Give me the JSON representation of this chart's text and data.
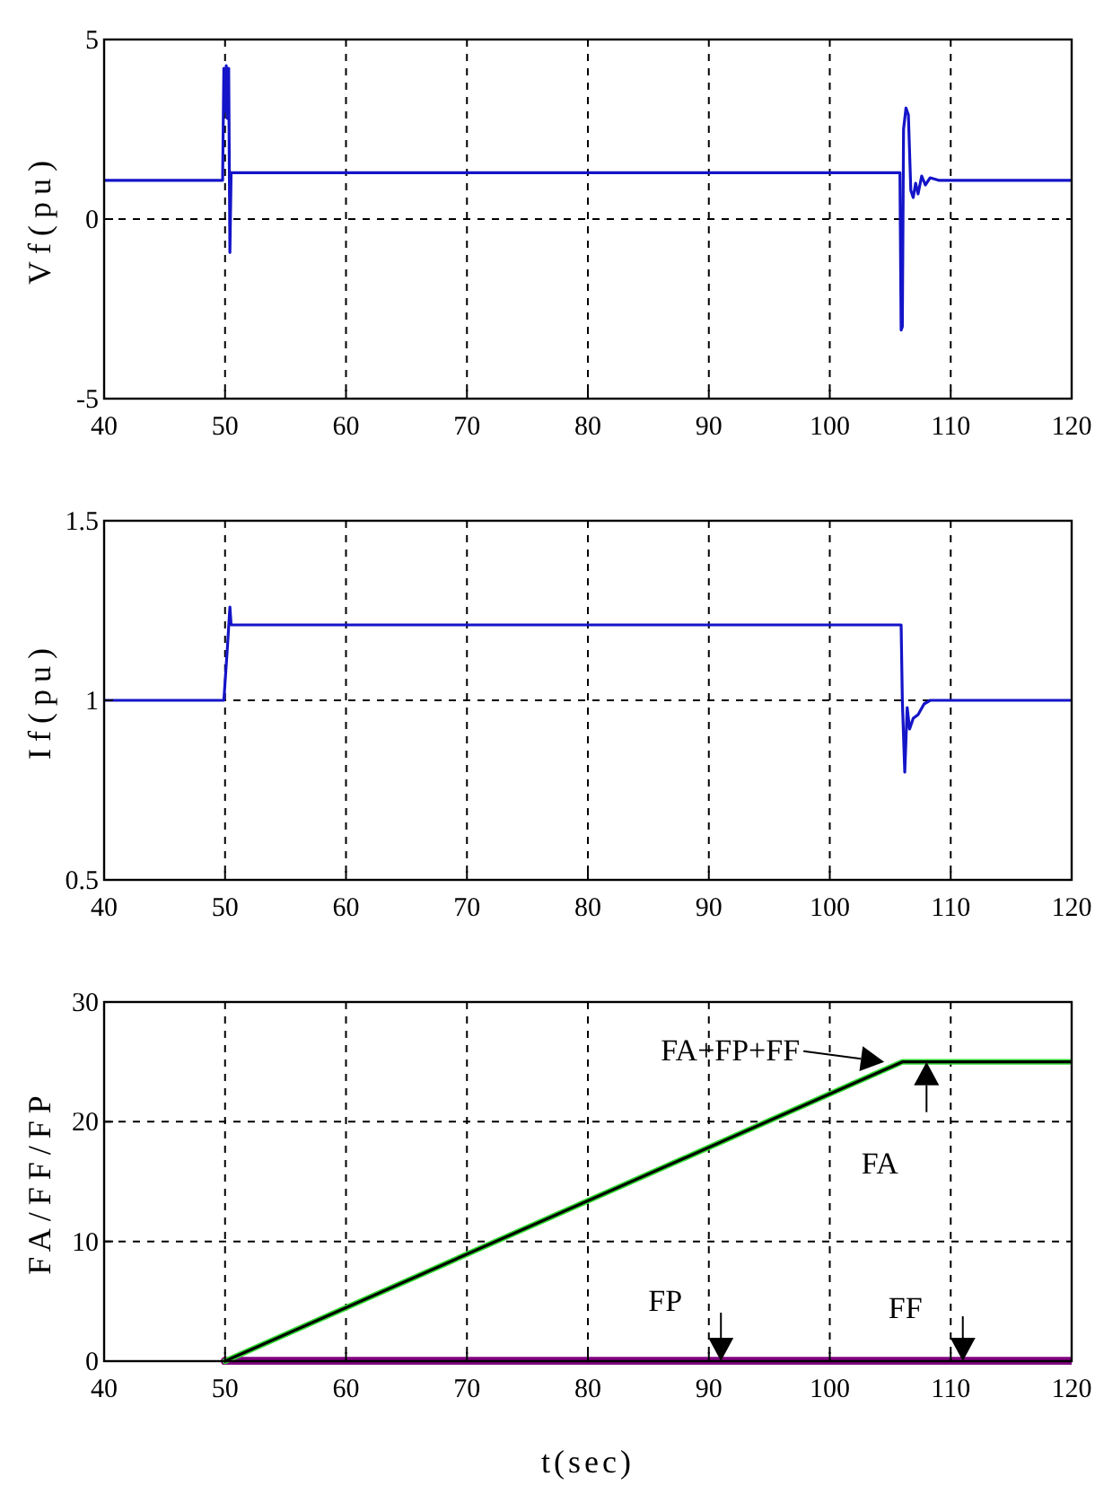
{
  "chart_data": [
    {
      "type": "line",
      "ylabel": "Vf(pu)",
      "xlim": [
        40,
        120
      ],
      "ylim": [
        -5,
        5
      ],
      "xticks": [
        40,
        50,
        60,
        70,
        80,
        90,
        100,
        110,
        120
      ],
      "yticks": [
        -5,
        0,
        5
      ],
      "grid": true,
      "series": [
        {
          "color": "#1414c8",
          "x": [
            40,
            49.8,
            49.9,
            50.0,
            50.1,
            50.2,
            50.3,
            50.4,
            50.5,
            105.8,
            105.9,
            106.0,
            106.1,
            106.3,
            106.5,
            106.7,
            106.9,
            107.1,
            107.3,
            107.6,
            107.9,
            108.3,
            109,
            120
          ],
          "values": [
            1.08,
            1.08,
            4.2,
            3.0,
            4.27,
            2.8,
            4.2,
            -0.93,
            1.29,
            1.29,
            -3.09,
            -3.0,
            2.5,
            3.09,
            2.9,
            0.8,
            0.6,
            1.0,
            0.7,
            1.2,
            0.95,
            1.15,
            1.08,
            1.08
          ]
        }
      ]
    },
    {
      "type": "line",
      "ylabel": "If(pu)",
      "xlim": [
        40,
        120
      ],
      "ylim": [
        0.5,
        1.5
      ],
      "xticks": [
        40,
        50,
        60,
        70,
        80,
        90,
        100,
        110,
        120
      ],
      "yticks": [
        0.5,
        1,
        1.5
      ],
      "grid": true,
      "series": [
        {
          "color": "#1414c8",
          "x": [
            40,
            49.9,
            50.0,
            50.2,
            50.4,
            50.5,
            50.7,
            105.9,
            106.0,
            106.2,
            106.4,
            106.6,
            106.9,
            107.3,
            107.8,
            108.3,
            120
          ],
          "values": [
            1,
            1,
            1.05,
            1.15,
            1.26,
            1.21,
            1.21,
            1.21,
            1.0,
            0.8,
            0.98,
            0.92,
            0.95,
            0.96,
            0.99,
            1.0,
            1.0
          ]
        }
      ]
    },
    {
      "type": "line",
      "xlabel": "t(sec)",
      "ylabel": "FA/FF/FP",
      "xlim": [
        40,
        120
      ],
      "ylim": [
        0,
        30
      ],
      "xticks": [
        40,
        50,
        60,
        70,
        80,
        90,
        100,
        110,
        120
      ],
      "yticks": [
        0,
        10,
        20,
        30
      ],
      "grid": true,
      "series": [
        {
          "color": "#800080",
          "x": [
            50,
            120
          ],
          "values": [
            0,
            0
          ]
        },
        {
          "color": "#33dd33",
          "x": [
            50,
            106,
            120
          ],
          "values": [
            0,
            25,
            25
          ]
        },
        {
          "color": "#000000",
          "x": [
            50,
            106,
            120
          ],
          "values": [
            0,
            25,
            25
          ]
        }
      ],
      "annotations": [
        {
          "text": "FA+FP+FF",
          "x": 104.5,
          "y": 25
        },
        {
          "text": "FA",
          "x": 108,
          "y": 25
        },
        {
          "text": "FP",
          "x": 91,
          "y": 0
        },
        {
          "text": "FF",
          "x": 111,
          "y": 0
        }
      ]
    }
  ]
}
